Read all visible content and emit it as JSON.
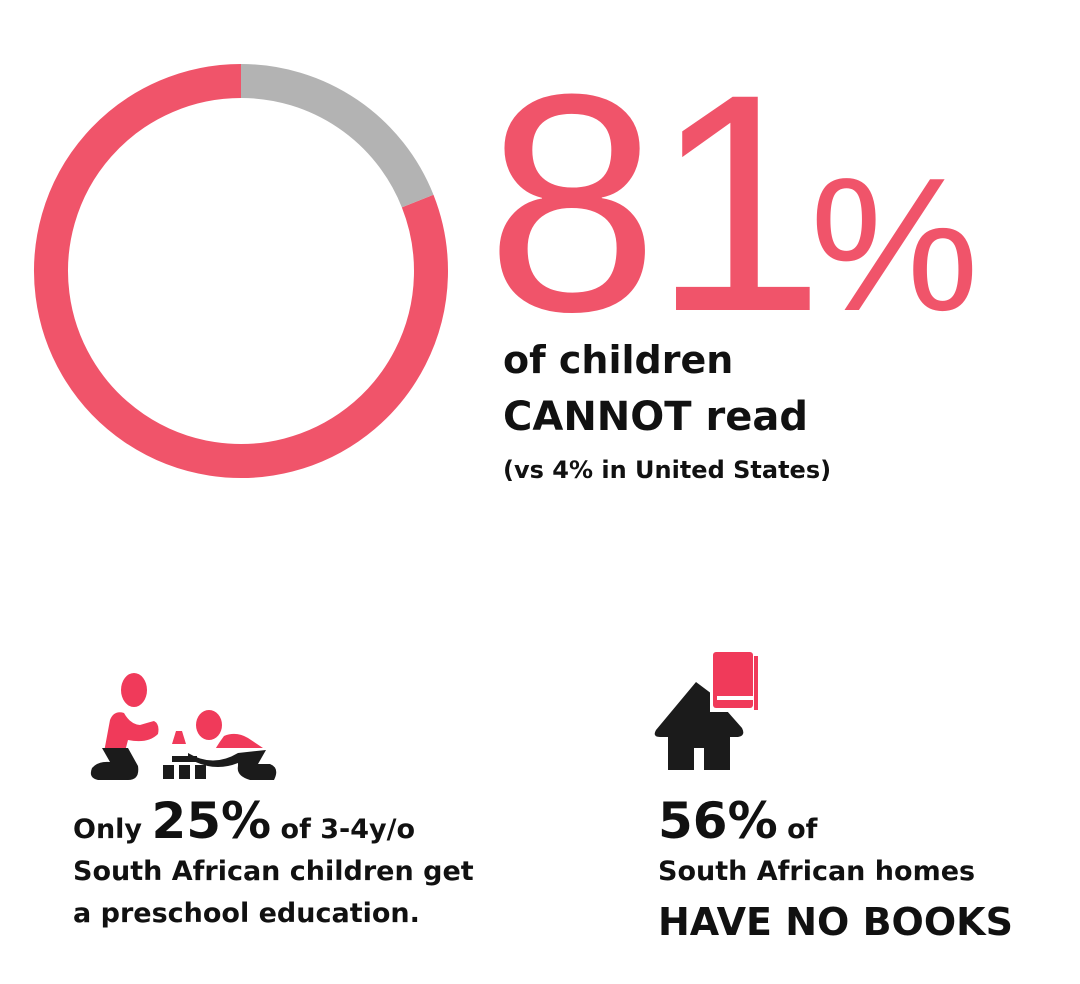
{
  "chart_data": {
    "type": "pie",
    "variant": "donut",
    "values": [
      81,
      19
    ],
    "colors": [
      "#f0546a",
      "#b3b3b3"
    ]
  },
  "headline": {
    "value": "81",
    "unit": "%",
    "line1": "of children",
    "line2": "CANNOT read",
    "line3": "(vs 4% in United States)"
  },
  "stat_preschool": {
    "prefix": "Only",
    "value": "25%",
    "suffix": "of 3-4y/o",
    "line2": "South African children get",
    "line3": "a preschool education.",
    "icon": "children-playing-blocks-icon"
  },
  "stat_books": {
    "value": "56%",
    "suffix": "of",
    "line2": "South African homes",
    "line3": "HAVE NO BOOKS",
    "icon": "house-with-book-icon"
  },
  "colors": {
    "accent": "#f0546a",
    "icon_accent": "#f03a5a",
    "dark": "#1b1b1b",
    "gray": "#b3b3b3"
  }
}
